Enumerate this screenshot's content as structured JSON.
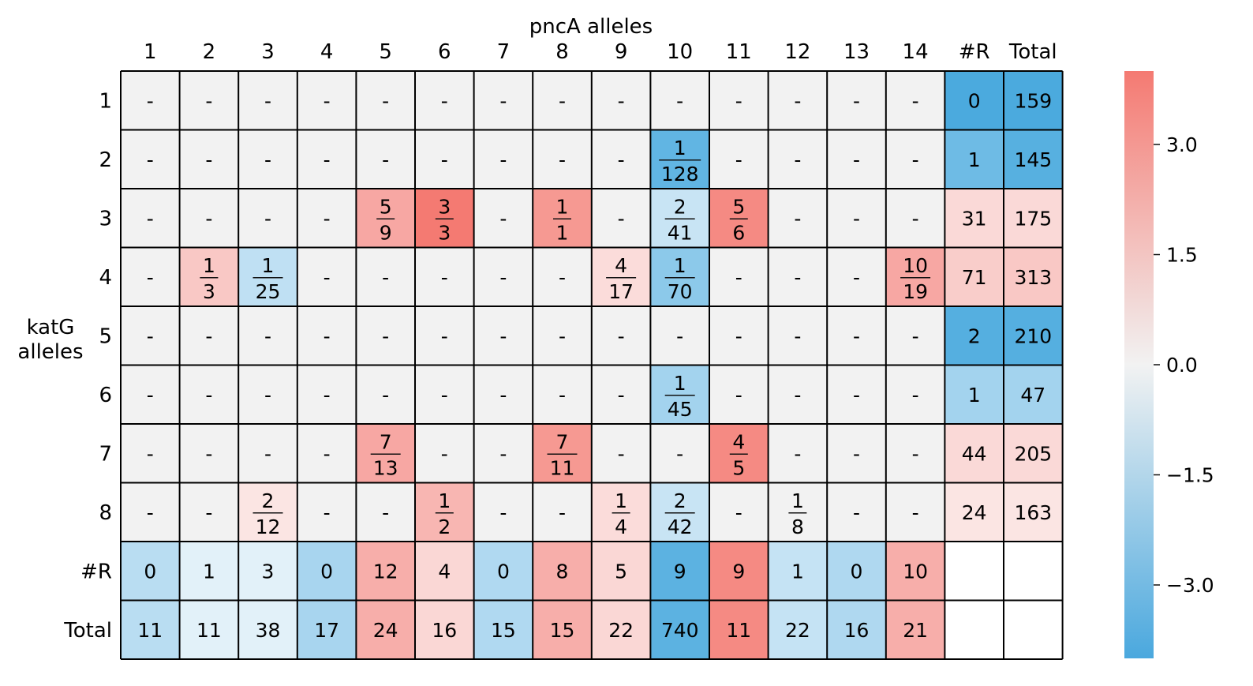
{
  "chart_data": {
    "type": "heatmap",
    "title": "",
    "xlabel": "pncA alleles",
    "ylabel": "katG\nalleles",
    "col_labels": [
      "1",
      "2",
      "3",
      "4",
      "5",
      "6",
      "7",
      "8",
      "9",
      "10",
      "11",
      "12",
      "13",
      "14",
      "#R",
      "Total"
    ],
    "row_labels": [
      "1",
      "2",
      "3",
      "4",
      "5",
      "6",
      "7",
      "8",
      "#R",
      "Total"
    ],
    "cells": [
      [
        {
          "num": "",
          "den": "",
          "text": "-",
          "color": "#f2f2f2"
        },
        {
          "num": "",
          "den": "",
          "text": "-",
          "color": "#f2f2f2"
        },
        {
          "num": "",
          "den": "",
          "text": "-",
          "color": "#f2f2f2"
        },
        {
          "num": "",
          "den": "",
          "text": "-",
          "color": "#f2f2f2"
        },
        {
          "num": "",
          "den": "",
          "text": "-",
          "color": "#f2f2f2"
        },
        {
          "num": "",
          "den": "",
          "text": "-",
          "color": "#f2f2f2"
        },
        {
          "num": "",
          "den": "",
          "text": "-",
          "color": "#f2f2f2"
        },
        {
          "num": "",
          "den": "",
          "text": "-",
          "color": "#f2f2f2"
        },
        {
          "num": "",
          "den": "",
          "text": "-",
          "color": "#f2f2f2"
        },
        {
          "num": "",
          "den": "",
          "text": "-",
          "color": "#f2f2f2"
        },
        {
          "num": "",
          "den": "",
          "text": "-",
          "color": "#f2f2f2"
        },
        {
          "num": "",
          "den": "",
          "text": "-",
          "color": "#f2f2f2"
        },
        {
          "num": "",
          "den": "",
          "text": "-",
          "color": "#f2f2f2"
        },
        {
          "num": "",
          "den": "",
          "text": "-",
          "color": "#f2f2f2"
        },
        {
          "num": "",
          "den": "",
          "text": "0",
          "color": "#4baade"
        },
        {
          "num": "",
          "den": "",
          "text": "159",
          "color": "#4baade"
        }
      ],
      [
        {
          "num": "",
          "den": "",
          "text": "-",
          "color": "#f2f2f2"
        },
        {
          "num": "",
          "den": "",
          "text": "-",
          "color": "#f2f2f2"
        },
        {
          "num": "",
          "den": "",
          "text": "-",
          "color": "#f2f2f2"
        },
        {
          "num": "",
          "den": "",
          "text": "-",
          "color": "#f2f2f2"
        },
        {
          "num": "",
          "den": "",
          "text": "-",
          "color": "#f2f2f2"
        },
        {
          "num": "",
          "den": "",
          "text": "-",
          "color": "#f2f2f2"
        },
        {
          "num": "",
          "den": "",
          "text": "-",
          "color": "#f2f2f2"
        },
        {
          "num": "",
          "den": "",
          "text": "-",
          "color": "#f2f2f2"
        },
        {
          "num": "",
          "den": "",
          "text": "-",
          "color": "#f2f2f2"
        },
        {
          "num": "1",
          "den": "128",
          "text": "",
          "color": "#61b5e3"
        },
        {
          "num": "",
          "den": "",
          "text": "-",
          "color": "#f2f2f2"
        },
        {
          "num": "",
          "den": "",
          "text": "-",
          "color": "#f2f2f2"
        },
        {
          "num": "",
          "den": "",
          "text": "-",
          "color": "#f2f2f2"
        },
        {
          "num": "",
          "den": "",
          "text": "-",
          "color": "#f2f2f2"
        },
        {
          "num": "",
          "den": "",
          "text": "1",
          "color": "#6ebbe5"
        },
        {
          "num": "",
          "den": "",
          "text": "145",
          "color": "#57b0e0"
        }
      ],
      [
        {
          "num": "",
          "den": "",
          "text": "-",
          "color": "#f2f2f2"
        },
        {
          "num": "",
          "den": "",
          "text": "-",
          "color": "#f2f2f2"
        },
        {
          "num": "",
          "den": "",
          "text": "-",
          "color": "#f2f2f2"
        },
        {
          "num": "",
          "den": "",
          "text": "-",
          "color": "#f2f2f2"
        },
        {
          "num": "5",
          "den": "9",
          "text": "",
          "color": "#f7a7a3"
        },
        {
          "num": "3",
          "den": "3",
          "text": "",
          "color": "#f47a72"
        },
        {
          "num": "",
          "den": "",
          "text": "-",
          "color": "#f2f2f2"
        },
        {
          "num": "1",
          "den": "1",
          "text": "",
          "color": "#f69992"
        },
        {
          "num": "",
          "den": "",
          "text": "-",
          "color": "#f2f2f2"
        },
        {
          "num": "2",
          "den": "41",
          "text": "",
          "color": "#c8e4f4"
        },
        {
          "num": "5",
          "den": "6",
          "text": "",
          "color": "#f58a83"
        },
        {
          "num": "",
          "den": "",
          "text": "-",
          "color": "#f2f2f2"
        },
        {
          "num": "",
          "den": "",
          "text": "-",
          "color": "#f2f2f2"
        },
        {
          "num": "",
          "den": "",
          "text": "-",
          "color": "#f2f2f2"
        },
        {
          "num": "",
          "den": "",
          "text": "31",
          "color": "#fad9d7"
        },
        {
          "num": "",
          "den": "",
          "text": "175",
          "color": "#fad9d7"
        }
      ],
      [
        {
          "num": "",
          "den": "",
          "text": "-",
          "color": "#f2f2f2"
        },
        {
          "num": "1",
          "den": "3",
          "text": "",
          "color": "#f9c8c5"
        },
        {
          "num": "1",
          "den": "25",
          "text": "",
          "color": "#bfe0f3"
        },
        {
          "num": "",
          "den": "",
          "text": "-",
          "color": "#f2f2f2"
        },
        {
          "num": "",
          "den": "",
          "text": "-",
          "color": "#f2f2f2"
        },
        {
          "num": "",
          "den": "",
          "text": "-",
          "color": "#f2f2f2"
        },
        {
          "num": "",
          "den": "",
          "text": "-",
          "color": "#f2f2f2"
        },
        {
          "num": "",
          "den": "",
          "text": "-",
          "color": "#f2f2f2"
        },
        {
          "num": "4",
          "den": "17",
          "text": "",
          "color": "#fbdcda"
        },
        {
          "num": "1",
          "den": "70",
          "text": "",
          "color": "#8cc9ea"
        },
        {
          "num": "",
          "den": "",
          "text": "-",
          "color": "#f2f2f2"
        },
        {
          "num": "",
          "den": "",
          "text": "-",
          "color": "#f2f2f2"
        },
        {
          "num": "",
          "den": "",
          "text": "-",
          "color": "#f2f2f2"
        },
        {
          "num": "10",
          "den": "19",
          "text": "",
          "color": "#f7a7a3"
        },
        {
          "num": "",
          "den": "",
          "text": "71",
          "color": "#f9cdca"
        },
        {
          "num": "",
          "den": "",
          "text": "313",
          "color": "#f9c8c5"
        }
      ],
      [
        {
          "num": "",
          "den": "",
          "text": "-",
          "color": "#f2f2f2"
        },
        {
          "num": "",
          "den": "",
          "text": "-",
          "color": "#f2f2f2"
        },
        {
          "num": "",
          "den": "",
          "text": "-",
          "color": "#f2f2f2"
        },
        {
          "num": "",
          "den": "",
          "text": "-",
          "color": "#f2f2f2"
        },
        {
          "num": "",
          "den": "",
          "text": "-",
          "color": "#f2f2f2"
        },
        {
          "num": "",
          "den": "",
          "text": "-",
          "color": "#f2f2f2"
        },
        {
          "num": "",
          "den": "",
          "text": "-",
          "color": "#f2f2f2"
        },
        {
          "num": "",
          "den": "",
          "text": "-",
          "color": "#f2f2f2"
        },
        {
          "num": "",
          "den": "",
          "text": "-",
          "color": "#f2f2f2"
        },
        {
          "num": "",
          "den": "",
          "text": "-",
          "color": "#f2f2f2"
        },
        {
          "num": "",
          "den": "",
          "text": "-",
          "color": "#f2f2f2"
        },
        {
          "num": "",
          "den": "",
          "text": "-",
          "color": "#f2f2f2"
        },
        {
          "num": "",
          "den": "",
          "text": "-",
          "color": "#f2f2f2"
        },
        {
          "num": "",
          "den": "",
          "text": "-",
          "color": "#f2f2f2"
        },
        {
          "num": "",
          "den": "",
          "text": "2",
          "color": "#55afe0"
        },
        {
          "num": "",
          "den": "",
          "text": "210",
          "color": "#55afe0"
        }
      ],
      [
        {
          "num": "",
          "den": "",
          "text": "-",
          "color": "#f2f2f2"
        },
        {
          "num": "",
          "den": "",
          "text": "-",
          "color": "#f2f2f2"
        },
        {
          "num": "",
          "den": "",
          "text": "-",
          "color": "#f2f2f2"
        },
        {
          "num": "",
          "den": "",
          "text": "-",
          "color": "#f2f2f2"
        },
        {
          "num": "",
          "den": "",
          "text": "-",
          "color": "#f2f2f2"
        },
        {
          "num": "",
          "den": "",
          "text": "-",
          "color": "#f2f2f2"
        },
        {
          "num": "",
          "den": "",
          "text": "-",
          "color": "#f2f2f2"
        },
        {
          "num": "",
          "den": "",
          "text": "-",
          "color": "#f2f2f2"
        },
        {
          "num": "",
          "den": "",
          "text": "-",
          "color": "#f2f2f2"
        },
        {
          "num": "1",
          "den": "45",
          "text": "",
          "color": "#a3d3ee"
        },
        {
          "num": "",
          "den": "",
          "text": "-",
          "color": "#f2f2f2"
        },
        {
          "num": "",
          "den": "",
          "text": "-",
          "color": "#f2f2f2"
        },
        {
          "num": "",
          "den": "",
          "text": "-",
          "color": "#f2f2f2"
        },
        {
          "num": "",
          "den": "",
          "text": "-",
          "color": "#f2f2f2"
        },
        {
          "num": "",
          "den": "",
          "text": "1",
          "color": "#a3d3ee"
        },
        {
          "num": "",
          "den": "",
          "text": "47",
          "color": "#a3d3ee"
        }
      ],
      [
        {
          "num": "",
          "den": "",
          "text": "-",
          "color": "#f2f2f2"
        },
        {
          "num": "",
          "den": "",
          "text": "-",
          "color": "#f2f2f2"
        },
        {
          "num": "",
          "den": "",
          "text": "-",
          "color": "#f2f2f2"
        },
        {
          "num": "",
          "den": "",
          "text": "-",
          "color": "#f2f2f2"
        },
        {
          "num": "7",
          "den": "13",
          "text": "",
          "color": "#f7a7a3"
        },
        {
          "num": "",
          "den": "",
          "text": "-",
          "color": "#f2f2f2"
        },
        {
          "num": "",
          "den": "",
          "text": "-",
          "color": "#f2f2f2"
        },
        {
          "num": "7",
          "den": "11",
          "text": "",
          "color": "#f69992"
        },
        {
          "num": "",
          "den": "",
          "text": "-",
          "color": "#f2f2f2"
        },
        {
          "num": "",
          "den": "",
          "text": "-",
          "color": "#f2f2f2"
        },
        {
          "num": "4",
          "den": "5",
          "text": "",
          "color": "#f58a83"
        },
        {
          "num": "",
          "den": "",
          "text": "-",
          "color": "#f2f2f2"
        },
        {
          "num": "",
          "den": "",
          "text": "-",
          "color": "#f2f2f2"
        },
        {
          "num": "",
          "den": "",
          "text": "-",
          "color": "#f2f2f2"
        },
        {
          "num": "",
          "den": "",
          "text": "44",
          "color": "#fad9d7"
        },
        {
          "num": "",
          "den": "",
          "text": "205",
          "color": "#fad9d7"
        }
      ],
      [
        {
          "num": "",
          "den": "",
          "text": "-",
          "color": "#f2f2f2"
        },
        {
          "num": "",
          "den": "",
          "text": "-",
          "color": "#f2f2f2"
        },
        {
          "num": "2",
          "den": "12",
          "text": "",
          "color": "#fbe5e3"
        },
        {
          "num": "",
          "den": "",
          "text": "-",
          "color": "#f2f2f2"
        },
        {
          "num": "",
          "den": "",
          "text": "-",
          "color": "#f2f2f2"
        },
        {
          "num": "1",
          "den": "2",
          "text": "",
          "color": "#f8b6b2"
        },
        {
          "num": "",
          "den": "",
          "text": "-",
          "color": "#f2f2f2"
        },
        {
          "num": "",
          "den": "",
          "text": "-",
          "color": "#f2f2f2"
        },
        {
          "num": "1",
          "den": "4",
          "text": "",
          "color": "#fbdcda"
        },
        {
          "num": "2",
          "den": "42",
          "text": "",
          "color": "#c8e4f4"
        },
        {
          "num": "",
          "den": "",
          "text": "-",
          "color": "#f2f2f2"
        },
        {
          "num": "1",
          "den": "8",
          "text": "",
          "color": "#f2f2f2"
        },
        {
          "num": "",
          "den": "",
          "text": "-",
          "color": "#f2f2f2"
        },
        {
          "num": "",
          "den": "",
          "text": "-",
          "color": "#f2f2f2"
        },
        {
          "num": "",
          "den": "",
          "text": "24",
          "color": "#fbe5e3"
        },
        {
          "num": "",
          "den": "",
          "text": "163",
          "color": "#fbe5e3"
        }
      ],
      [
        {
          "num": "",
          "den": "",
          "text": "0",
          "color": "#b9ddf2"
        },
        {
          "num": "",
          "den": "",
          "text": "1",
          "color": "#e2f1f9"
        },
        {
          "num": "",
          "den": "",
          "text": "3",
          "color": "#e2f1f9"
        },
        {
          "num": "",
          "den": "",
          "text": "0",
          "color": "#a8d5ef"
        },
        {
          "num": "",
          "den": "",
          "text": "12",
          "color": "#f7aeaa"
        },
        {
          "num": "",
          "den": "",
          "text": "4",
          "color": "#fad7d5"
        },
        {
          "num": "",
          "den": "",
          "text": "0",
          "color": "#b0d9f1"
        },
        {
          "num": "",
          "den": "",
          "text": "8",
          "color": "#f7aeaa"
        },
        {
          "num": "",
          "den": "",
          "text": "5",
          "color": "#fad7d5"
        },
        {
          "num": "",
          "den": "",
          "text": "9",
          "color": "#5cb2e1"
        },
        {
          "num": "",
          "den": "",
          "text": "9",
          "color": "#f58a83"
        },
        {
          "num": "",
          "den": "",
          "text": "1",
          "color": "#c5e3f4"
        },
        {
          "num": "",
          "den": "",
          "text": "0",
          "color": "#afd8f0"
        },
        {
          "num": "",
          "den": "",
          "text": "10",
          "color": "#f7aeaa"
        },
        {
          "num": "",
          "den": "",
          "text": "",
          "color": "#ffffff"
        },
        {
          "num": "",
          "den": "",
          "text": "",
          "color": "#ffffff"
        }
      ],
      [
        {
          "num": "",
          "den": "",
          "text": "11",
          "color": "#b9ddf2"
        },
        {
          "num": "",
          "den": "",
          "text": "11",
          "color": "#e2f1f9"
        },
        {
          "num": "",
          "den": "",
          "text": "38",
          "color": "#e2f1f9"
        },
        {
          "num": "",
          "den": "",
          "text": "17",
          "color": "#a8d5ef"
        },
        {
          "num": "",
          "den": "",
          "text": "24",
          "color": "#f7aeaa"
        },
        {
          "num": "",
          "den": "",
          "text": "16",
          "color": "#fad7d5"
        },
        {
          "num": "",
          "den": "",
          "text": "15",
          "color": "#b0d9f1"
        },
        {
          "num": "",
          "den": "",
          "text": "15",
          "color": "#f7aeaa"
        },
        {
          "num": "",
          "den": "",
          "text": "22",
          "color": "#fad7d5"
        },
        {
          "num": "",
          "den": "",
          "text": "740",
          "color": "#5cb2e1"
        },
        {
          "num": "",
          "den": "",
          "text": "11",
          "color": "#f58a83"
        },
        {
          "num": "",
          "den": "",
          "text": "22",
          "color": "#c5e3f4"
        },
        {
          "num": "",
          "den": "",
          "text": "16",
          "color": "#afd8f0"
        },
        {
          "num": "",
          "den": "",
          "text": "21",
          "color": "#f7aeaa"
        },
        {
          "num": "",
          "den": "",
          "text": "",
          "color": "#ffffff"
        },
        {
          "num": "",
          "den": "",
          "text": "",
          "color": "#ffffff"
        }
      ]
    ],
    "colorbar": {
      "ticks": [
        "3.0",
        "1.5",
        "0.0",
        "−1.5",
        "−3.0"
      ],
      "tick_values": [
        3.0,
        1.5,
        0.0,
        -1.5,
        -3.0
      ],
      "range": [
        -4,
        4
      ],
      "low_color": "#4aa8de",
      "mid_color": "#f2f2f2",
      "high_color": "#f47a72"
    },
    "grid": true,
    "legend": "colorbar-right"
  }
}
